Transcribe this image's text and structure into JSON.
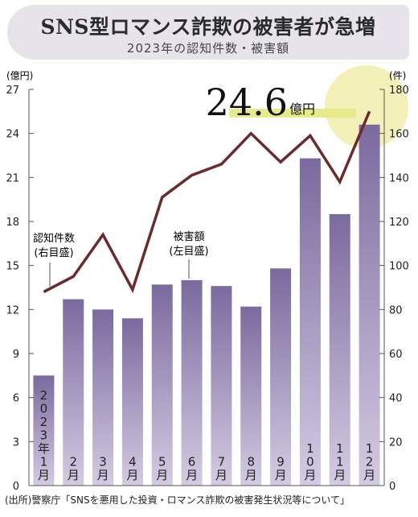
{
  "header": {
    "title": "SNS型ロマンス詐欺の被害者が急増",
    "subtitle": "2023年の認知件数・被害額"
  },
  "source": "(出所)警察庁「SNSを悪用した投資・ロマンス詐欺の被害発生状況等について」",
  "colors": {
    "bar_top": "#7b6a9e",
    "bar_bottom": "#d3cbe2",
    "line": "#6b2b2b",
    "highlight_circle": "#f1eea6",
    "highlight_underline": "#e7ea8a",
    "header_bg": "#e6e3ea"
  },
  "chart_data": {
    "type": "bar",
    "categories": [
      "2023年1月",
      "2月",
      "3月",
      "4月",
      "5月",
      "6月",
      "7月",
      "8月",
      "9月",
      "10月",
      "11月",
      "12月"
    ],
    "series": [
      {
        "name": "被害額",
        "name_line2": "(左目盛)",
        "axis": "left",
        "type": "bar",
        "values": [
          7.5,
          12.7,
          12.0,
          11.4,
          13.7,
          14.0,
          13.6,
          12.2,
          14.8,
          22.3,
          18.5,
          24.6
        ]
      },
      {
        "name": "認知件数",
        "name_line2": "(右目盛)",
        "axis": "right",
        "type": "line",
        "values": [
          88,
          95,
          114,
          89,
          131,
          141,
          146,
          160,
          147,
          159,
          138,
          170
        ]
      }
    ],
    "y_left": {
      "unit": "(億円)",
      "ticks": [
        "0",
        "3",
        "6",
        "9",
        "12",
        "15",
        "18",
        "21",
        "24",
        "27"
      ],
      "ylim": [
        0,
        27
      ]
    },
    "y_right": {
      "unit": "(件)",
      "ticks": [
        "0",
        "20",
        "40",
        "60",
        "80",
        "100",
        "120",
        "140",
        "160",
        "180"
      ],
      "ylim": [
        0,
        180
      ]
    },
    "annotation": {
      "value": "24.6",
      "unit": "億円"
    },
    "grid": false
  }
}
